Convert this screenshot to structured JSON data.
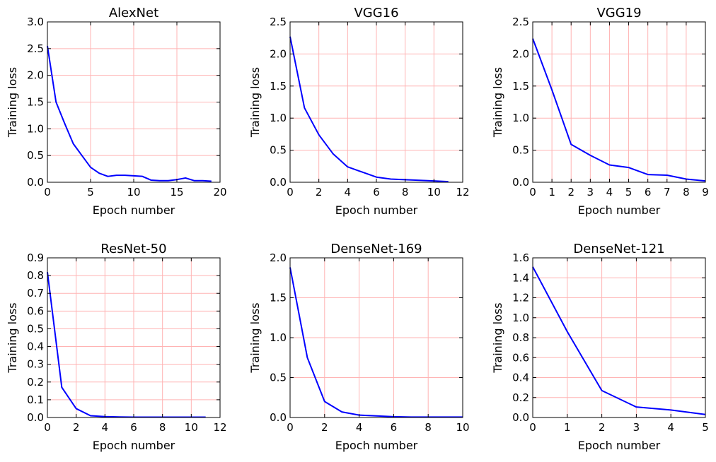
{
  "style": {
    "line_color": "#0000ff",
    "grid_color": "#ffb3b3",
    "axes_color": "#000000",
    "background": "#ffffff"
  },
  "chart_data": [
    {
      "type": "line",
      "title": "AlexNet",
      "xlabel": "Epoch number",
      "ylabel": "Training loss",
      "xlim": [
        0,
        20
      ],
      "ylim": [
        0,
        3.0
      ],
      "xticks": [
        0,
        5,
        10,
        15,
        20
      ],
      "yticks": [
        0,
        0.5,
        1.0,
        1.5,
        2.0,
        2.5,
        3.0
      ],
      "xtick_labels": [
        "0",
        "5",
        "10",
        "15",
        "20"
      ],
      "ytick_labels": [
        "0.0",
        "0.5",
        "1.0",
        "1.5",
        "2.0",
        "2.5",
        "3.0"
      ],
      "grid": true,
      "x": [
        0,
        1,
        2,
        3,
        4,
        5,
        6,
        7,
        8,
        9,
        10,
        11,
        12,
        13,
        14,
        15,
        16,
        17,
        18,
        19
      ],
      "y": [
        2.55,
        1.5,
        1.1,
        0.72,
        0.5,
        0.28,
        0.17,
        0.11,
        0.13,
        0.13,
        0.12,
        0.11,
        0.04,
        0.03,
        0.03,
        0.05,
        0.08,
        0.03,
        0.03,
        0.02
      ]
    },
    {
      "type": "line",
      "title": "VGG16",
      "xlabel": "Epoch number",
      "ylabel": "Training loss",
      "xlim": [
        0,
        12
      ],
      "ylim": [
        0,
        2.5
      ],
      "xticks": [
        0,
        2,
        4,
        6,
        8,
        10,
        12
      ],
      "yticks": [
        0,
        0.5,
        1.0,
        1.5,
        2.0,
        2.5
      ],
      "xtick_labels": [
        "0",
        "2",
        "4",
        "6",
        "8",
        "10",
        "12"
      ],
      "ytick_labels": [
        "0.0",
        "0.5",
        "1.0",
        "1.5",
        "2.0",
        "2.5"
      ],
      "grid": true,
      "x": [
        0,
        1,
        2,
        3,
        4,
        5,
        6,
        7,
        8,
        9,
        10,
        11
      ],
      "y": [
        2.27,
        1.16,
        0.74,
        0.44,
        0.24,
        0.16,
        0.08,
        0.05,
        0.04,
        0.03,
        0.02,
        0.01
      ]
    },
    {
      "type": "line",
      "title": "VGG19",
      "xlabel": "Epoch number",
      "ylabel": "Training loss",
      "xlim": [
        0,
        9
      ],
      "ylim": [
        0,
        2.5
      ],
      "xticks": [
        0,
        1,
        2,
        3,
        4,
        5,
        6,
        7,
        8,
        9
      ],
      "yticks": [
        0,
        0.5,
        1.0,
        1.5,
        2.0,
        2.5
      ],
      "xtick_labels": [
        "0",
        "1",
        "2",
        "3",
        "4",
        "5",
        "6",
        "7",
        "8",
        "9"
      ],
      "ytick_labels": [
        "0.0",
        "0.5",
        "1.0",
        "1.5",
        "2.0",
        "2.5"
      ],
      "grid": true,
      "x": [
        0,
        1,
        2,
        3,
        4,
        5,
        6,
        7,
        8,
        9
      ],
      "y": [
        2.24,
        1.44,
        0.59,
        0.42,
        0.27,
        0.23,
        0.12,
        0.11,
        0.05,
        0.02
      ]
    },
    {
      "type": "line",
      "title": "ResNet-50",
      "xlabel": "Epoch number",
      "ylabel": "Training loss",
      "xlim": [
        0,
        12
      ],
      "ylim": [
        0,
        0.9
      ],
      "xticks": [
        0,
        2,
        4,
        6,
        8,
        10,
        12
      ],
      "yticks": [
        0,
        0.1,
        0.2,
        0.3,
        0.4,
        0.5,
        0.6,
        0.7,
        0.8,
        0.9
      ],
      "xtick_labels": [
        "0",
        "2",
        "4",
        "6",
        "8",
        "10",
        "12"
      ],
      "ytick_labels": [
        "0.0",
        "0.1",
        "0.2",
        "0.3",
        "0.4",
        "0.5",
        "0.6",
        "0.7",
        "0.8",
        "0.9"
      ],
      "grid": true,
      "x": [
        0,
        1,
        2,
        3,
        4,
        5,
        6,
        7,
        8,
        9,
        10,
        11
      ],
      "y": [
        0.82,
        0.17,
        0.05,
        0.01,
        0.005,
        0.003,
        0.002,
        0.002,
        0.002,
        0.002,
        0.002,
        0.002
      ]
    },
    {
      "type": "line",
      "title": "DenseNet-169",
      "xlabel": "Epoch number",
      "ylabel": "Training loss",
      "xlim": [
        0,
        10
      ],
      "ylim": [
        0,
        2.0
      ],
      "xticks": [
        0,
        2,
        4,
        6,
        8,
        10
      ],
      "yticks": [
        0,
        0.5,
        1.0,
        1.5,
        2.0
      ],
      "xtick_labels": [
        "0",
        "2",
        "4",
        "6",
        "8",
        "10"
      ],
      "ytick_labels": [
        "0.0",
        "0.5",
        "1.0",
        "1.5",
        "2.0"
      ],
      "grid": true,
      "x": [
        0,
        1,
        2,
        3,
        4,
        5,
        6,
        7,
        8,
        9,
        10
      ],
      "y": [
        1.88,
        0.75,
        0.2,
        0.07,
        0.03,
        0.02,
        0.01,
        0.005,
        0.005,
        0.005,
        0.005
      ]
    },
    {
      "type": "line",
      "title": "DenseNet-121",
      "xlabel": "Epoch number",
      "ylabel": "Training loss",
      "xlim": [
        0,
        5
      ],
      "ylim": [
        0,
        1.6
      ],
      "xticks": [
        0,
        1,
        2,
        3,
        4,
        5
      ],
      "yticks": [
        0,
        0.2,
        0.4,
        0.6,
        0.8,
        1.0,
        1.2,
        1.4,
        1.6
      ],
      "xtick_labels": [
        "0",
        "1",
        "2",
        "3",
        "4",
        "5"
      ],
      "ytick_labels": [
        "0.0",
        "0.2",
        "0.4",
        "0.6",
        "0.8",
        "1.0",
        "1.2",
        "1.4",
        "1.6"
      ],
      "grid": true,
      "x": [
        0,
        1,
        2,
        3,
        4,
        5
      ],
      "y": [
        1.51,
        0.86,
        0.27,
        0.105,
        0.075,
        0.03
      ]
    }
  ]
}
